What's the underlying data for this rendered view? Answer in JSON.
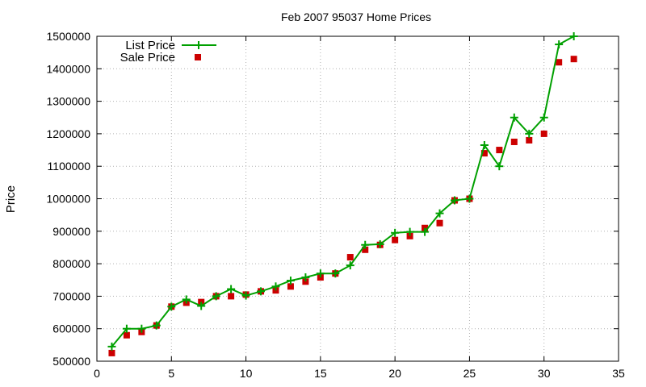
{
  "chart_data": {
    "type": "line",
    "title": "Feb 2007 95037 Home Prices",
    "xlabel": "",
    "ylabel": "Price",
    "xlim": [
      0,
      35
    ],
    "ylim": [
      500000,
      1500000
    ],
    "xticks": [
      0,
      5,
      10,
      15,
      20,
      25,
      30,
      35
    ],
    "yticks": [
      500000,
      600000,
      700000,
      800000,
      900000,
      1000000,
      1100000,
      1200000,
      1300000,
      1400000,
      1500000
    ],
    "grid": true,
    "legend_position": "top-left",
    "series": [
      {
        "name": "List Price",
        "style": "line-with-plus",
        "color": "#00a000",
        "x": [
          1,
          2,
          3,
          4,
          5,
          6,
          7,
          8,
          9,
          10,
          11,
          12,
          13,
          14,
          15,
          16,
          17,
          18,
          19,
          20,
          21,
          22,
          23,
          24,
          25,
          26,
          27,
          28,
          29,
          30,
          31,
          32
        ],
        "y": [
          545000,
          600000,
          600000,
          610000,
          668000,
          690000,
          670000,
          700000,
          722000,
          702000,
          715000,
          730000,
          748000,
          758000,
          770000,
          770000,
          795000,
          858000,
          860000,
          895000,
          898000,
          898000,
          955000,
          995000,
          1000000,
          1165000,
          1100000,
          1250000,
          1200000,
          1250000,
          1475000,
          1500000
        ]
      },
      {
        "name": "Sale Price",
        "style": "square-markers",
        "color": "#cc0000",
        "x": [
          1,
          2,
          3,
          4,
          5,
          6,
          7,
          8,
          9,
          10,
          11,
          12,
          13,
          14,
          15,
          16,
          17,
          18,
          19,
          20,
          21,
          22,
          23,
          24,
          25,
          26,
          27,
          28,
          29,
          30,
          31,
          32
        ],
        "y": [
          525000,
          580000,
          590000,
          610000,
          668000,
          680000,
          682000,
          700000,
          700000,
          705000,
          715000,
          718000,
          730000,
          745000,
          758000,
          770000,
          820000,
          843000,
          858000,
          873000,
          885000,
          910000,
          925000,
          995000,
          1000000,
          1140000,
          1150000,
          1175000,
          1180000,
          1200000,
          1420000,
          1430000
        ]
      }
    ]
  }
}
